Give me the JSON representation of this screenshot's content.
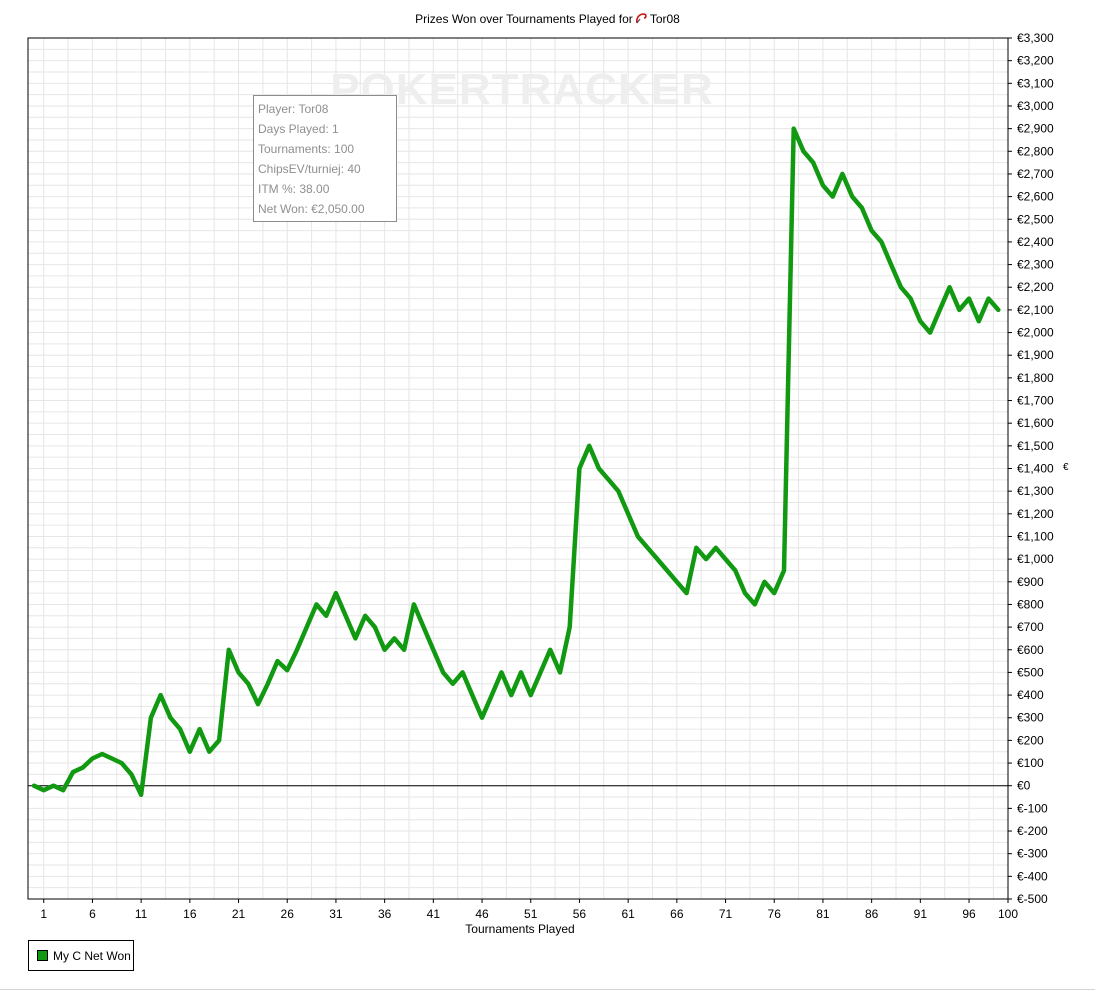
{
  "title": "Prizes Won over Tournaments Played for",
  "player_name": "Tor08",
  "watermark": "POKERTRACKER",
  "info_box": [
    "Player: Tor08",
    "Days Played: 1",
    "Tournaments: 100",
    "ChipsEV/turniej: 40",
    "ITM %: 38.00",
    "Net Won: €2,050.00"
  ],
  "colors": {
    "series": "#119911",
    "grid": "#e6e6e6",
    "border": "#000000"
  },
  "chart_data": {
    "type": "line",
    "title": "Prizes Won over Tournaments Played for Tor08",
    "xlabel": "Tournaments Played",
    "ylabel": "€",
    "xlim": [
      0,
      100
    ],
    "ylim": [
      -500,
      3300
    ],
    "x_ticks": [
      "1",
      "6",
      "11",
      "16",
      "21",
      "26",
      "31",
      "36",
      "41",
      "46",
      "51",
      "56",
      "61",
      "66",
      "71",
      "76",
      "81",
      "86",
      "91",
      "96",
      "100"
    ],
    "y_ticks": [
      "€3,300",
      "€3,200",
      "€3,100",
      "€3,000",
      "€2,900",
      "€2,800",
      "€2,700",
      "€2,600",
      "€2,500",
      "€2,400",
      "€2,300",
      "€2,200",
      "€2,100",
      "€2,000",
      "€1,900",
      "€1,800",
      "€1,700",
      "€1,600",
      "€1,500",
      "€1,400",
      "€1,300",
      "€1,200",
      "€1,100",
      "€1,000",
      "€900",
      "€800",
      "€700",
      "€600",
      "€500",
      "€400",
      "€300",
      "€200",
      "€100",
      "€0",
      "€-100",
      "€-200",
      "€-300",
      "€-400",
      "€-500"
    ],
    "legend_position": "bottom-left",
    "grid": true,
    "series": [
      {
        "name": "My C Net Won",
        "x": [
          0,
          1,
          2,
          3,
          4,
          5,
          6,
          7,
          8,
          9,
          10,
          11,
          12,
          13,
          14,
          15,
          16,
          17,
          18,
          19,
          20,
          21,
          22,
          23,
          24,
          25,
          26,
          27,
          28,
          29,
          30,
          31,
          32,
          33,
          34,
          35,
          36,
          37,
          38,
          39,
          40,
          41,
          42,
          43,
          44,
          45,
          46,
          47,
          48,
          49,
          50,
          51,
          52,
          53,
          54,
          55,
          56,
          57,
          58,
          59,
          60,
          61,
          62,
          63,
          64,
          65,
          66,
          67,
          68,
          69,
          70,
          71,
          72,
          73,
          74,
          75,
          76,
          77,
          78,
          79,
          80,
          81,
          82,
          83,
          84,
          85,
          86,
          87,
          88,
          89,
          90,
          91,
          92,
          93,
          94,
          95,
          96,
          97,
          98,
          99
        ],
        "values": [
          0,
          -20,
          0,
          -20,
          60,
          80,
          120,
          140,
          120,
          100,
          50,
          -40,
          300,
          400,
          300,
          250,
          150,
          250,
          150,
          200,
          600,
          500,
          450,
          360,
          450,
          550,
          510,
          600,
          700,
          800,
          750,
          850,
          750,
          650,
          750,
          700,
          600,
          650,
          600,
          800,
          700,
          600,
          500,
          450,
          500,
          400,
          300,
          400,
          500,
          400,
          500,
          400,
          500,
          600,
          500,
          700,
          1400,
          1500,
          1400,
          1350,
          1300,
          1200,
          1100,
          1050,
          1000,
          950,
          900,
          850,
          1050,
          1000,
          1050,
          1000,
          950,
          850,
          800,
          900,
          850,
          950,
          2900,
          2800,
          2750,
          2650,
          2600,
          2700,
          2600,
          2550,
          2450,
          2400,
          2300,
          2200,
          2150,
          2050,
          2000,
          2100,
          2200,
          2100,
          2150,
          2050,
          2150,
          2100
        ]
      }
    ]
  }
}
